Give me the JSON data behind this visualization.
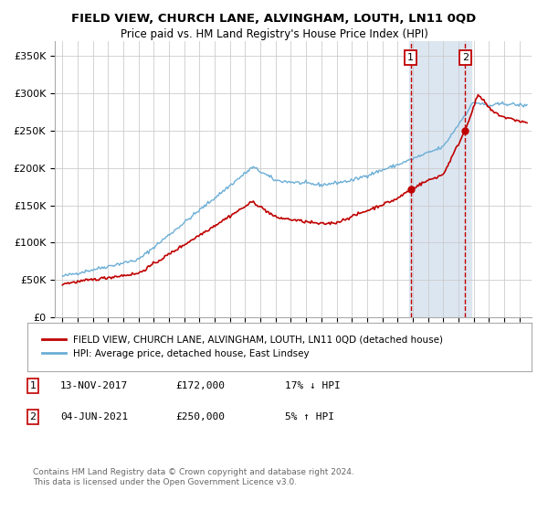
{
  "title": "FIELD VIEW, CHURCH LANE, ALVINGHAM, LOUTH, LN11 0QD",
  "subtitle": "Price paid vs. HM Land Registry's House Price Index (HPI)",
  "ylabel_ticks": [
    "£0",
    "£50K",
    "£100K",
    "£150K",
    "£200K",
    "£250K",
    "£300K",
    "£350K"
  ],
  "ytick_values": [
    0,
    50000,
    100000,
    150000,
    200000,
    250000,
    300000,
    350000
  ],
  "ylim": [
    0,
    370000
  ],
  "xlim_start": 1994.5,
  "xlim_end": 2025.8,
  "sale1_x": 2017.87,
  "sale1_y": 172000,
  "sale1_label": "1",
  "sale2_x": 2021.45,
  "sale2_y": 250000,
  "sale2_label": "2",
  "hpi_color": "#6baed6",
  "price_color": "#c00000",
  "annotation_box_color": "#c00000",
  "shaded_color": "#dce6f1",
  "grid_color": "#cccccc",
  "legend_label1": "FIELD VIEW, CHURCH LANE, ALVINGHAM, LOUTH, LN11 0QD (detached house)",
  "legend_label2": "HPI: Average price, detached house, East Lindsey",
  "note1_num": "1",
  "note1_date": "13-NOV-2017",
  "note1_price": "£172,000",
  "note1_hpi": "17% ↓ HPI",
  "note2_num": "2",
  "note2_date": "04-JUN-2021",
  "note2_price": "£250,000",
  "note2_hpi": "5% ↑ HPI",
  "footer": "Contains HM Land Registry data © Crown copyright and database right 2024.\nThis data is licensed under the Open Government Licence v3.0."
}
